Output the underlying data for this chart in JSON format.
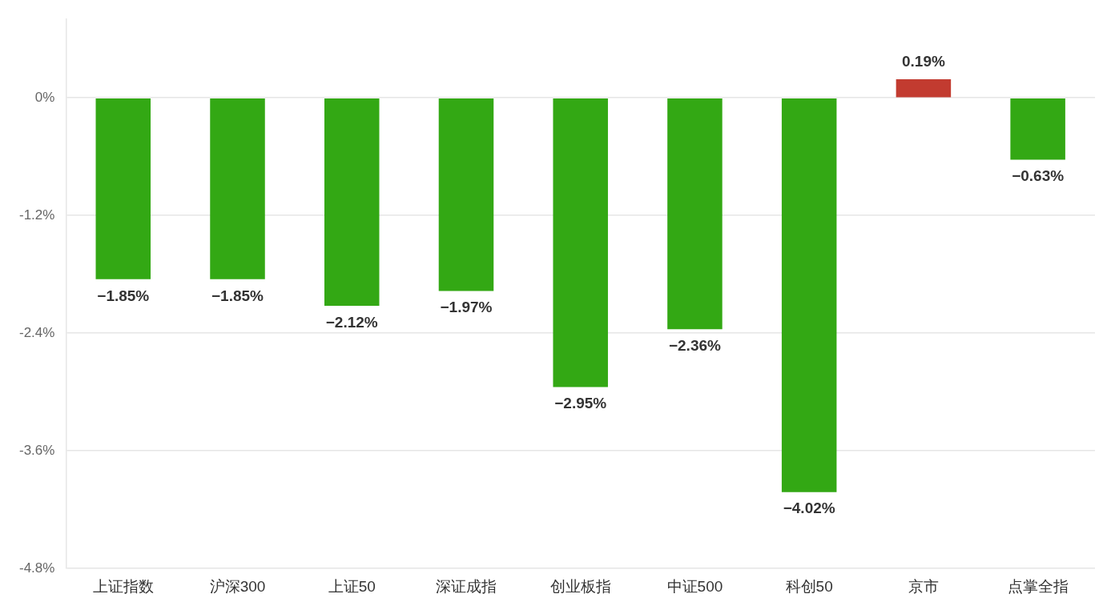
{
  "chart_data": {
    "type": "bar",
    "categories": [
      "上证指数",
      "沪深300",
      "上证50",
      "深证成指",
      "创业板指",
      "中证500",
      "科创50",
      "京市",
      "点掌全指"
    ],
    "values": [
      -1.85,
      -1.85,
      -2.12,
      -1.97,
      -2.95,
      -2.36,
      -4.02,
      0.19,
      -0.63
    ],
    "colors": [
      "#33a814",
      "#33a814",
      "#33a814",
      "#33a814",
      "#33a814",
      "#33a814",
      "#33a814",
      "#c23b30",
      "#33a814"
    ],
    "value_labels": [
      "−1.85%",
      "−1.85%",
      "−2.12%",
      "−1.97%",
      "−2.95%",
      "−2.36%",
      "−4.02%",
      "0.19%",
      "−0.63%"
    ],
    "ylim": [
      -4.8,
      0.8
    ],
    "yticks": [
      {
        "value": 0,
        "label": "0%"
      },
      {
        "value": -1.2,
        "label": "-1.2%"
      },
      {
        "value": -2.4,
        "label": "-2.4%"
      },
      {
        "value": -3.6,
        "label": "-3.6%"
      },
      {
        "value": -4.8,
        "label": "-4.8%"
      }
    ],
    "grid": "y",
    "legend": false
  }
}
